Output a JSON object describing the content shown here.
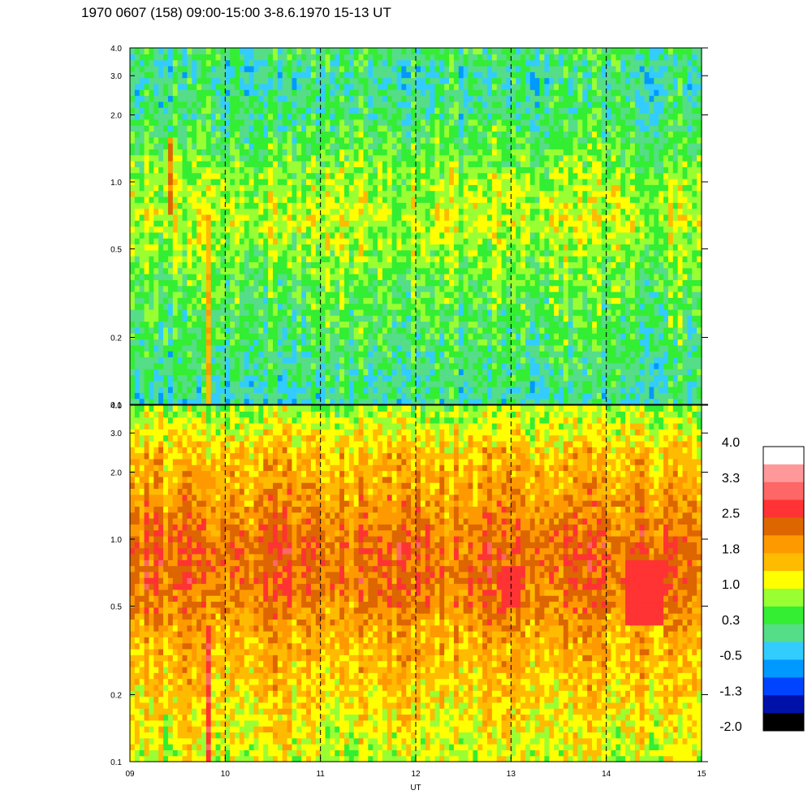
{
  "chart_data": {
    "type": "heatmap",
    "title": "1970 0607 (158) 09:00-15:00 3-8.6.1970  15-13 UT",
    "xlabel": "UT",
    "x_range": [
      9,
      15
    ],
    "x_ticks": [
      "09",
      "10",
      "11",
      "12",
      "13",
      "14",
      "15"
    ],
    "x_tick_values": [
      9,
      10,
      11,
      12,
      13,
      14,
      15
    ],
    "dashed_vertical_lines_at": [
      10,
      11,
      12,
      13,
      14
    ],
    "y_scale": "log",
    "y_range": [
      0.1,
      4.0
    ],
    "y_ticks": [
      "0.1",
      "0.2",
      "0.5",
      "1.0",
      "2.0",
      "3.0",
      "4.0"
    ],
    "y_tick_values": [
      0.1,
      0.2,
      0.5,
      1.0,
      2.0,
      3.0,
      4.0
    ],
    "panels": [
      {
        "position": "top",
        "profile": [
          {
            "y": 0.1,
            "value": 0.0
          },
          {
            "y": 0.2,
            "value": 0.3
          },
          {
            "y": 0.4,
            "value": 0.6
          },
          {
            "y": 0.7,
            "value": 1.0
          },
          {
            "y": 1.0,
            "value": 0.8
          },
          {
            "y": 2.0,
            "value": 0.2
          },
          {
            "y": 3.0,
            "value": 0.0
          },
          {
            "y": 4.0,
            "value": 0.3
          }
        ],
        "features": [
          {
            "x_start": 9.38,
            "x_end": 9.46,
            "y_min": 0.7,
            "y_max": 1.6,
            "value": 2.2
          },
          {
            "x_start": 9.78,
            "x_end": 9.86,
            "y_min": 0.1,
            "y_max": 0.7,
            "value": 1.7
          },
          {
            "x_start": 9.72,
            "x_end": 9.76,
            "y_min": 0.1,
            "y_max": 0.14,
            "value": -0.4
          }
        ]
      },
      {
        "position": "bottom",
        "profile": [
          {
            "y": 0.1,
            "value": 1.0
          },
          {
            "y": 0.2,
            "value": 1.4
          },
          {
            "y": 0.4,
            "value": 1.8
          },
          {
            "y": 0.6,
            "value": 2.2
          },
          {
            "y": 0.9,
            "value": 2.3
          },
          {
            "y": 1.5,
            "value": 1.9
          },
          {
            "y": 2.5,
            "value": 1.5
          },
          {
            "y": 4.0,
            "value": 0.7
          }
        ],
        "features": [
          {
            "x_start": 9.78,
            "x_end": 9.86,
            "y_min": 0.1,
            "y_max": 0.4,
            "value": 2.8
          },
          {
            "x_start": 12.9,
            "x_end": 13.1,
            "y_min": 0.5,
            "y_max": 0.75,
            "value": 2.7
          },
          {
            "x_start": 14.2,
            "x_end": 14.6,
            "y_min": 0.4,
            "y_max": 0.8,
            "value": 2.7
          }
        ]
      }
    ],
    "colorbar": {
      "labels": [
        "4.0",
        "3.3",
        "2.5",
        "1.8",
        "1.0",
        "0.3",
        "-0.5",
        "-1.3",
        "-2.0"
      ],
      "label_values": [
        4.0,
        3.3,
        2.5,
        1.8,
        1.0,
        0.3,
        -0.5,
        -1.3,
        -2.0
      ],
      "range": [
        -2.0,
        4.0
      ],
      "colors_top_to_bottom": [
        "#ffffff",
        "#ff9999",
        "#ff6666",
        "#ff3333",
        "#dd6600",
        "#ff9900",
        "#ffbb00",
        "#ffff00",
        "#99ff33",
        "#33ee33",
        "#55dd88",
        "#33ccff",
        "#0099ff",
        "#0044ff",
        "#0011aa",
        "#000000"
      ]
    }
  }
}
